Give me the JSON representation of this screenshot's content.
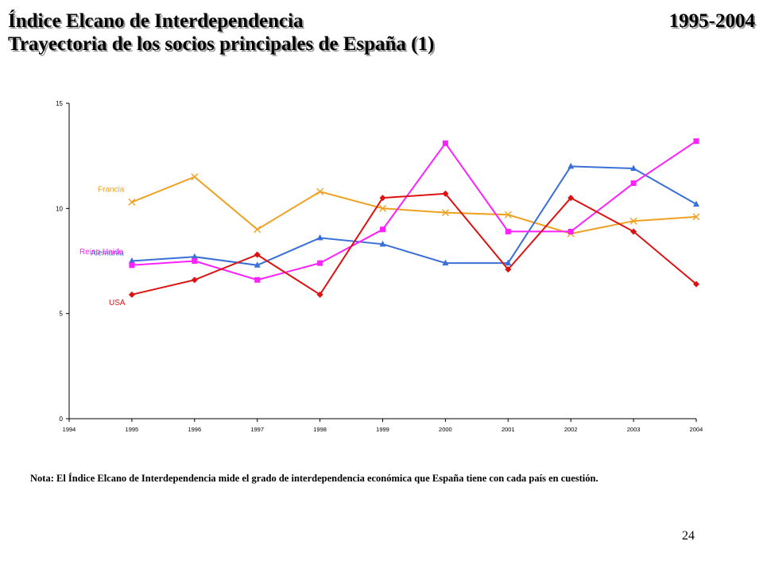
{
  "slide": {
    "title": "Índice Elcano de Interdependencia",
    "years_label": "1995-2004",
    "subtitle": "Trayectoria de los socios principales de España (1)",
    "note": "Nota: El Índice Elcano de Interdependencia mide el grado de interdependencia económica que España tiene con cada país en cuestión.",
    "page_number": "24"
  },
  "chart_data": {
    "type": "line",
    "title": "",
    "xlabel": "",
    "ylabel": "",
    "x": [
      1994,
      1995,
      1996,
      1997,
      1998,
      1999,
      2000,
      2001,
      2002,
      2003,
      2004
    ],
    "xlim": [
      1994,
      2004
    ],
    "ylim": [
      0,
      15
    ],
    "yticks": [
      0,
      5,
      10,
      15
    ],
    "grid": false,
    "legend": "inline labels at left",
    "series": [
      {
        "name": "Francia",
        "color": "#f0a020",
        "marker": "x",
        "x": [
          1995,
          1996,
          1997,
          1998,
          1999,
          2000,
          2001,
          2002,
          2003,
          2004
        ],
        "values": [
          10.3,
          11.5,
          9.0,
          10.8,
          10.0,
          9.8,
          9.7,
          8.8,
          9.4,
          9.6
        ]
      },
      {
        "name": "Alemania",
        "color": "#3a6fd8",
        "marker": "triangle",
        "x": [
          1995,
          1996,
          1997,
          1998,
          1999,
          2000,
          2001,
          2002,
          2003,
          2004
        ],
        "values": [
          7.5,
          7.7,
          7.3,
          8.6,
          8.3,
          7.4,
          7.4,
          12.0,
          11.9,
          10.2
        ]
      },
      {
        "name": "Reino Unido",
        "color": "#ff20ff",
        "marker": "square",
        "x": [
          1995,
          1996,
          1997,
          1998,
          1999,
          2000,
          2001,
          2002,
          2003,
          2004
        ],
        "values": [
          7.3,
          7.5,
          6.6,
          7.4,
          9.0,
          13.1,
          8.9,
          8.9,
          11.2,
          13.2
        ]
      },
      {
        "name": "USA",
        "color": "#dd1111",
        "marker": "diamond",
        "x": [
          1995,
          1996,
          1997,
          1998,
          1999,
          2000,
          2001,
          2002,
          2003,
          2004
        ],
        "values": [
          5.9,
          6.6,
          7.8,
          5.9,
          10.5,
          10.7,
          7.1,
          10.5,
          8.9,
          6.4
        ]
      }
    ]
  }
}
